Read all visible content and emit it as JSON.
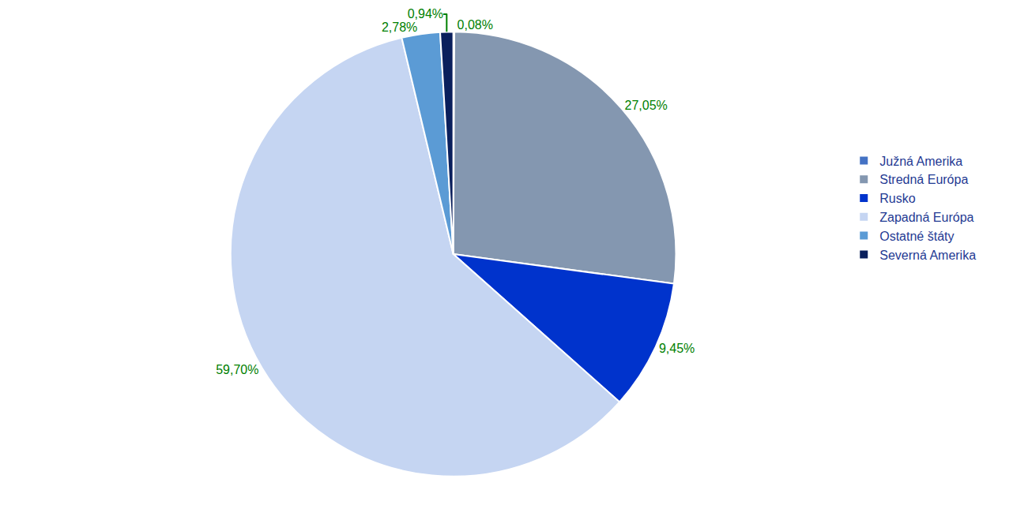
{
  "chart_data": {
    "type": "pie",
    "categories": [
      "Južná Amerika",
      "Stredná Európa",
      "Rusko",
      "Zapadná Európa",
      "Ostatné štáty",
      "Severná Amerika"
    ],
    "values": [
      0.08,
      27.05,
      9.45,
      59.7,
      2.78,
      0.94
    ],
    "value_labels": [
      "0,08%",
      "27,05%",
      "9,45%",
      "59,70%",
      "2,78%",
      "0,94%"
    ],
    "colors": [
      "#4472c4",
      "#8497b0",
      "#0033cc",
      "#c5d5f2",
      "#5b9bd5",
      "#0a1f5c"
    ],
    "data_labels": true,
    "legend": "right"
  }
}
